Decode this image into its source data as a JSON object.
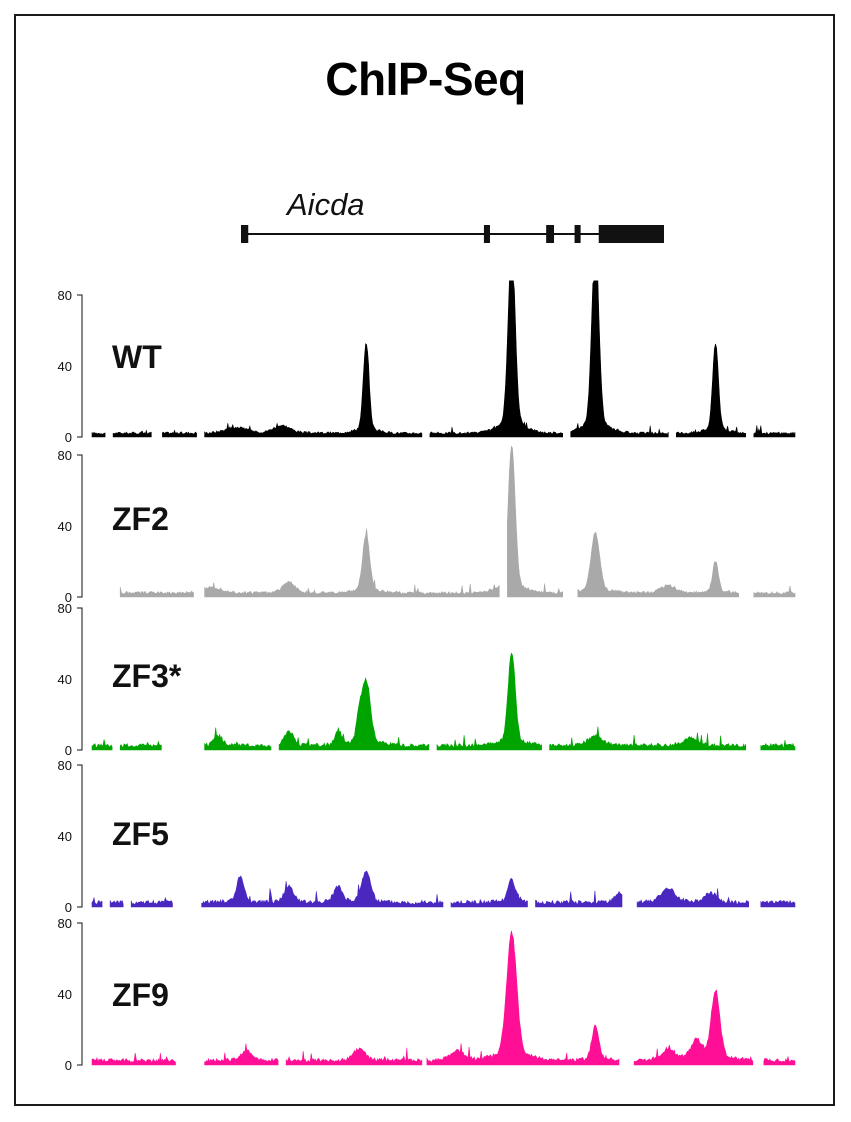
{
  "chart_data": {
    "type": "area",
    "title": "ChIP-Seq",
    "gene": {
      "name": "Aicda",
      "exons": [
        {
          "start": 0.0,
          "end": 0.012
        },
        {
          "start": 0.402,
          "end": 0.412
        },
        {
          "start": 0.505,
          "end": 0.518
        },
        {
          "start": 0.552,
          "end": 0.562
        },
        {
          "start": 0.592,
          "end": 0.7
        }
      ],
      "intron_start": 0.0,
      "intron_end": 0.7
    },
    "ylim": [
      0,
      80
    ],
    "yticks": [
      "0",
      "40",
      "80"
    ],
    "baseline_level": 1.5,
    "tracks": [
      {
        "name": "WT",
        "color": "#000000",
        "noise": 2.2,
        "peaks": [
          {
            "x": 0.39,
            "h": 48,
            "w": 0.004
          },
          {
            "x": 0.597,
            "h": 100,
            "w": 0.005
          },
          {
            "x": 0.716,
            "h": 100,
            "w": 0.005
          },
          {
            "x": 0.887,
            "h": 48,
            "w": 0.004
          },
          {
            "x": 0.27,
            "h": 4,
            "w": 0.012
          },
          {
            "x": 0.205,
            "h": 3,
            "w": 0.015
          }
        ],
        "gaps": [
          [
            0.02,
            0.03
          ],
          [
            0.085,
            0.1
          ],
          [
            0.15,
            0.16
          ],
          [
            0.47,
            0.48
          ],
          [
            0.67,
            0.68
          ],
          [
            0.82,
            0.83
          ],
          [
            0.93,
            0.94
          ]
        ]
      },
      {
        "name": "ZF2",
        "color": "#a9a9a9",
        "noise": 2.6,
        "peaks": [
          {
            "x": 0.39,
            "h": 31,
            "w": 0.005
          },
          {
            "x": 0.597,
            "h": 78,
            "w": 0.005
          },
          {
            "x": 0.716,
            "h": 32,
            "w": 0.006
          },
          {
            "x": 0.887,
            "h": 17,
            "w": 0.004
          },
          {
            "x": 0.28,
            "h": 6,
            "w": 0.008
          },
          {
            "x": 0.17,
            "h": 3,
            "w": 0.015
          },
          {
            "x": 0.82,
            "h": 4,
            "w": 0.01
          }
        ],
        "gaps": [
          [
            0.0,
            0.04
          ],
          [
            0.145,
            0.16
          ],
          [
            0.58,
            0.59
          ],
          [
            0.67,
            0.69
          ],
          [
            0.92,
            0.94
          ]
        ]
      },
      {
        "name": "ZF3*",
        "color": "#00a400",
        "noise": 3.5,
        "peaks": [
          {
            "x": 0.39,
            "h": 34,
            "w": 0.006
          },
          {
            "x": 0.597,
            "h": 50,
            "w": 0.005
          },
          {
            "x": 0.38,
            "h": 12,
            "w": 0.004
          },
          {
            "x": 0.35,
            "h": 8,
            "w": 0.004
          },
          {
            "x": 0.28,
            "h": 8,
            "w": 0.006
          },
          {
            "x": 0.18,
            "h": 5,
            "w": 0.006
          },
          {
            "x": 0.716,
            "h": 5,
            "w": 0.01
          },
          {
            "x": 0.85,
            "h": 4,
            "w": 0.01
          }
        ],
        "gaps": [
          [
            0.03,
            0.04
          ],
          [
            0.1,
            0.16
          ],
          [
            0.255,
            0.265
          ],
          [
            0.48,
            0.49
          ],
          [
            0.64,
            0.65
          ],
          [
            0.93,
            0.95
          ]
        ]
      },
      {
        "name": "ZF5",
        "color": "#4a28c0",
        "noise": 3.8,
        "peaks": [
          {
            "x": 0.211,
            "h": 14,
            "w": 0.005
          },
          {
            "x": 0.39,
            "h": 17,
            "w": 0.006
          },
          {
            "x": 0.597,
            "h": 12,
            "w": 0.005
          },
          {
            "x": 0.28,
            "h": 9,
            "w": 0.006
          },
          {
            "x": 0.35,
            "h": 8,
            "w": 0.006
          },
          {
            "x": 0.82,
            "h": 7,
            "w": 0.01
          },
          {
            "x": 0.75,
            "h": 5,
            "w": 0.006
          },
          {
            "x": 0.88,
            "h": 5,
            "w": 0.008
          }
        ],
        "gaps": [
          [
            0.015,
            0.025
          ],
          [
            0.045,
            0.055
          ],
          [
            0.115,
            0.155
          ],
          [
            0.5,
            0.51
          ],
          [
            0.62,
            0.63
          ],
          [
            0.755,
            0.775
          ],
          [
            0.935,
            0.95
          ]
        ]
      },
      {
        "name": "ZF9",
        "color": "#ff0f96",
        "noise": 3.6,
        "peaks": [
          {
            "x": 0.597,
            "h": 68,
            "w": 0.007
          },
          {
            "x": 0.716,
            "h": 18,
            "w": 0.005
          },
          {
            "x": 0.887,
            "h": 37,
            "w": 0.006
          },
          {
            "x": 0.86,
            "h": 10,
            "w": 0.008
          },
          {
            "x": 0.82,
            "h": 6,
            "w": 0.01
          },
          {
            "x": 0.38,
            "h": 6,
            "w": 0.008
          },
          {
            "x": 0.22,
            "h": 5,
            "w": 0.008
          },
          {
            "x": 0.52,
            "h": 5,
            "w": 0.01
          }
        ],
        "gaps": [
          [
            0.12,
            0.16
          ],
          [
            0.265,
            0.275
          ],
          [
            0.47,
            0.475
          ],
          [
            0.75,
            0.77
          ],
          [
            0.94,
            0.955
          ]
        ]
      }
    ]
  }
}
